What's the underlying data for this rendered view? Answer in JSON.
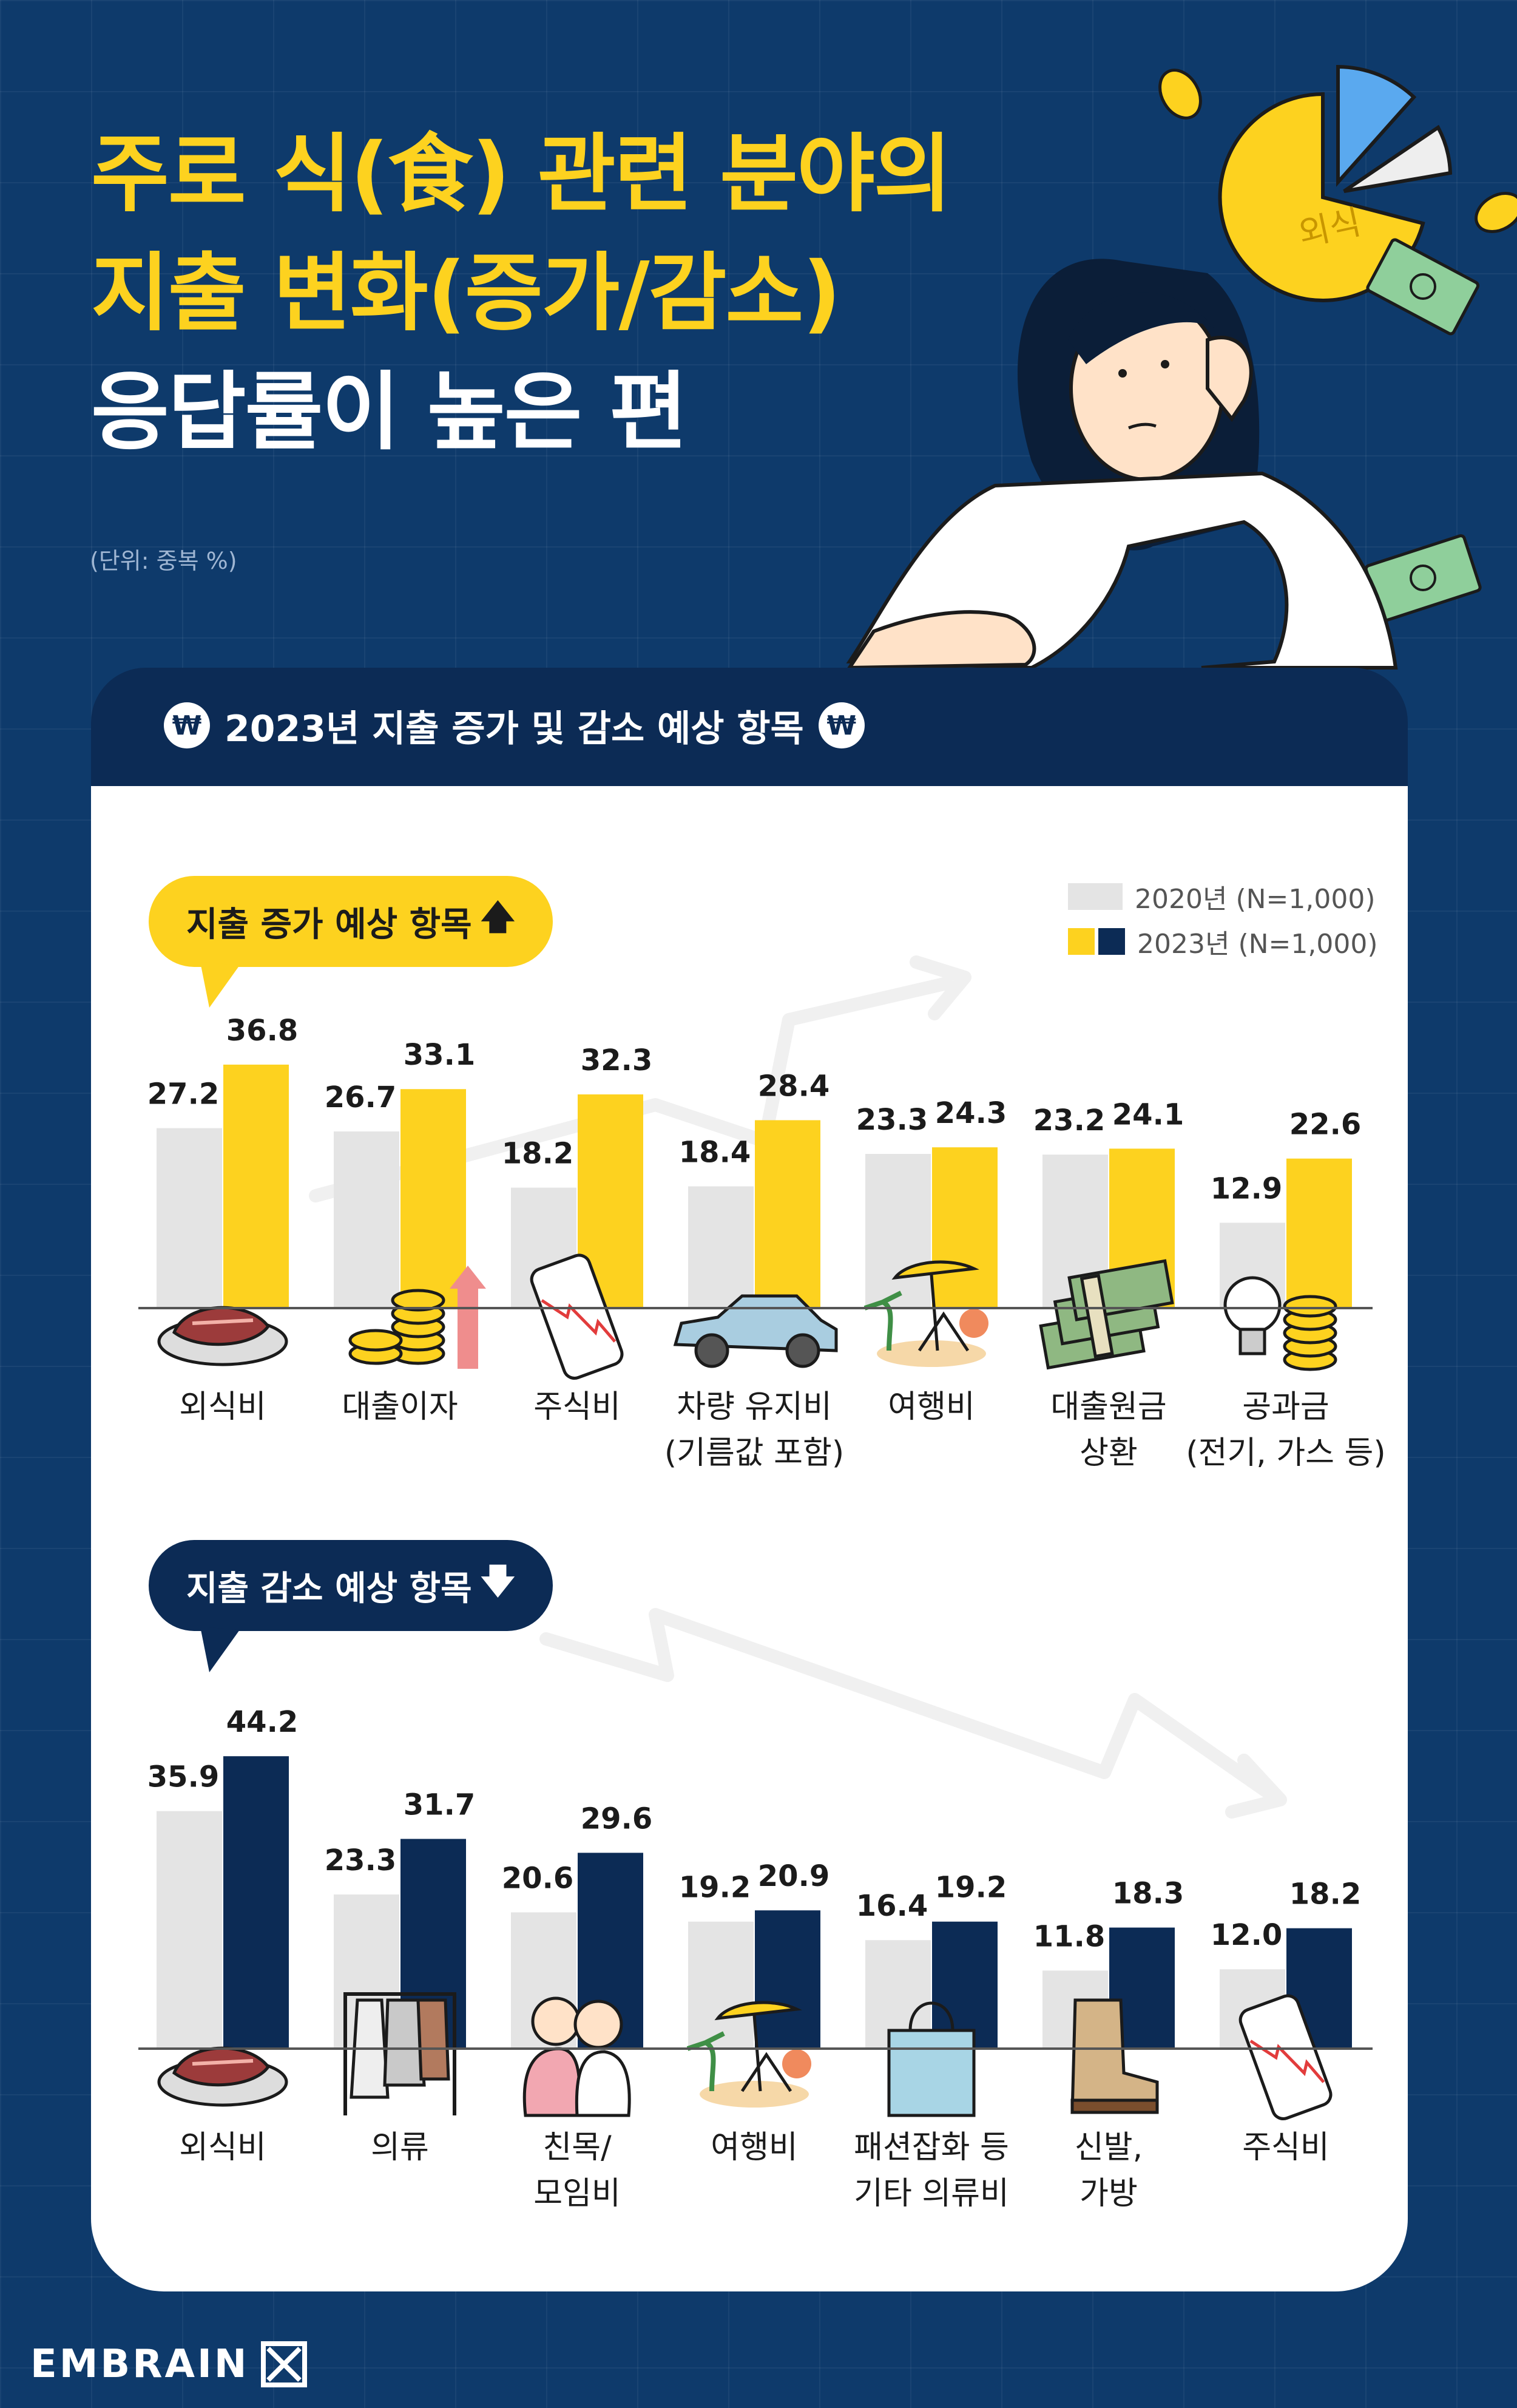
{
  "title": {
    "line1": "주로 식(食) 관련 분야의",
    "line2": "지출 변화(증가/감소)",
    "line3": "응답률이 높은 편"
  },
  "unit_note": "(단위: 중복 %)",
  "illustration_label": "외식",
  "panel_title": "2023년 지출 증가 및 감소 예상 항목",
  "won_symbol": "₩",
  "legend": {
    "y2020": "2020년 (N=1,000)",
    "y2023": "2023년 (N=1,000)"
  },
  "colors": {
    "bar_2020": "#e4e4e4",
    "bar_2023_increase": "#fdd21f",
    "bar_2023_decrease": "#0c2b55"
  },
  "chart_data": [
    {
      "type": "bar",
      "title": "지출 증가 예상 항목",
      "title_arrow": "🡅",
      "categories": [
        [
          "외식비"
        ],
        [
          "대출이자"
        ],
        [
          "주식비"
        ],
        [
          "차량 유지비",
          "(기름값 포함)"
        ],
        [
          "여행비"
        ],
        [
          "대출원금",
          "상환"
        ],
        [
          "공과금",
          "(전기, 가스 등)"
        ]
      ],
      "series": [
        {
          "name": "2020년 (N=1,000)",
          "values": [
            27.2,
            26.7,
            18.2,
            18.4,
            23.3,
            23.2,
            12.9
          ]
        },
        {
          "name": "2023년 (N=1,000)",
          "values": [
            36.8,
            33.1,
            32.3,
            28.4,
            24.3,
            24.1,
            22.6
          ]
        }
      ],
      "icons": [
        "steak-icon",
        "coin-stack-icon",
        "phone-stock-chart-icon",
        "car-icon",
        "beach-chair-icon",
        "cash-bundle-icon",
        "lightbulb-coin-icon"
      ],
      "ylim": [
        0,
        50
      ],
      "grid": false,
      "legend_position": "top-right"
    },
    {
      "type": "bar",
      "title": "지출 감소 예상 항목",
      "title_arrow": "🡇",
      "categories": [
        [
          "외식비"
        ],
        [
          "의류"
        ],
        [
          "친목/",
          "모임비"
        ],
        [
          "여행비"
        ],
        [
          "패션잡화 등",
          "기타 의류비"
        ],
        [
          "신발,",
          "가방"
        ],
        [
          "주식비"
        ]
      ],
      "series": [
        {
          "name": "2020년 (N=1,000)",
          "values": [
            35.9,
            23.3,
            20.6,
            19.2,
            16.4,
            11.8,
            12.0
          ]
        },
        {
          "name": "2023년 (N=1,000)",
          "values": [
            44.2,
            31.7,
            29.6,
            20.9,
            19.2,
            18.3,
            18.2
          ]
        }
      ],
      "icons": [
        "steak-icon",
        "clothes-rack-icon",
        "friends-hug-icon",
        "beach-chair-icon",
        "shopping-bag-icon",
        "boot-icon",
        "phone-stock-chart-icon"
      ],
      "ylim": [
        0,
        50
      ],
      "grid": false
    }
  ],
  "footer": {
    "brand": "EMBRAIN"
  }
}
